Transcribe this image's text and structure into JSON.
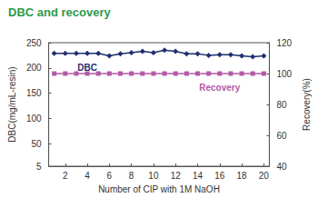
{
  "chart_data": {
    "type": "line",
    "title": "DBC and recovery",
    "x_label": "Number of CIP with 1M NaOH",
    "y_label": "DBC(mg/mL-resin)",
    "y2_label": "Recovery(%)",
    "x": [
      1,
      2,
      3,
      4,
      5,
      6,
      7,
      8,
      9,
      10,
      11,
      12,
      13,
      14,
      15,
      16,
      17,
      18,
      19,
      20
    ],
    "xlim": [
      0.5,
      20.5
    ],
    "xticks": [
      2,
      4,
      6,
      8,
      10,
      12,
      14,
      16,
      18,
      20
    ],
    "ylim": [
      5,
      250
    ],
    "yticks": [
      5,
      50,
      100,
      150,
      200,
      250
    ],
    "y2lim": [
      40,
      120
    ],
    "y2ticks": [
      40,
      60,
      80,
      100,
      120
    ],
    "grid": false,
    "series": [
      {
        "name": "DBC",
        "color": "#1f2f6e",
        "marker": "diamond",
        "axis": "y",
        "values": [
          229,
          229,
          229,
          229,
          229,
          224,
          228,
          230,
          233,
          230,
          235,
          233,
          228,
          228,
          225,
          226,
          226,
          224,
          222,
          224
        ]
      },
      {
        "name": "Recovery",
        "color": "#b35aa8",
        "marker": "square",
        "axis": "y2",
        "values": [
          100,
          100,
          100,
          100,
          100,
          100,
          100,
          100,
          100,
          100,
          100,
          100,
          100,
          100,
          100,
          100,
          100,
          100,
          100,
          100
        ]
      }
    ]
  }
}
